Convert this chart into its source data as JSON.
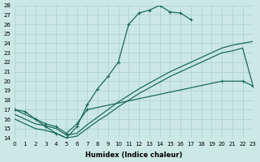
{
  "xlabel": "Humidex (Indice chaleur)",
  "bg_color": "#cce8e4",
  "grid_color": "#aacfca",
  "line_color": "#1a6b5a",
  "xlim": [
    0,
    23
  ],
  "ylim": [
    14,
    28
  ],
  "yticks": [
    14,
    15,
    16,
    17,
    18,
    19,
    20,
    21,
    22,
    23,
    24,
    25,
    26,
    27,
    28
  ],
  "xticks": [
    0,
    1,
    2,
    3,
    4,
    5,
    6,
    7,
    8,
    9,
    10,
    11,
    12,
    13,
    14,
    15,
    16,
    17,
    18,
    19,
    20,
    21,
    22,
    23
  ],
  "series": [
    {
      "x": [
        0,
        1,
        2,
        3,
        4,
        5,
        6,
        7,
        8,
        9,
        10,
        11,
        12,
        13,
        14,
        15,
        16,
        17
      ],
      "y": [
        17.0,
        16.8,
        16.0,
        15.2,
        14.5,
        14.0,
        15.2,
        17.5,
        19.2,
        20.5,
        22.0,
        26.0,
        27.2,
        27.5,
        28.0,
        27.3,
        27.2,
        26.5
      ],
      "marker": true
    },
    {
      "x": [
        0,
        2,
        3,
        4,
        5,
        6,
        7,
        20,
        22,
        23
      ],
      "y": [
        17.0,
        16.0,
        15.5,
        15.2,
        14.5,
        15.5,
        17.0,
        20.0,
        20.0,
        19.5
      ],
      "marker": true
    },
    {
      "x": [
        0,
        2,
        3,
        4,
        5,
        6,
        7,
        8,
        9,
        10,
        11,
        12,
        13,
        14,
        15,
        16,
        17,
        18,
        19,
        20,
        21,
        22,
        23
      ],
      "y": [
        16.5,
        15.5,
        15.3,
        15.0,
        14.3,
        14.5,
        15.4,
        16.2,
        17.0,
        17.8,
        18.5,
        19.2,
        19.8,
        20.4,
        21.0,
        21.5,
        22.0,
        22.5,
        23.0,
        23.5,
        23.8,
        24.0,
        24.2
      ],
      "marker": false
    },
    {
      "x": [
        0,
        2,
        3,
        4,
        5,
        6,
        7,
        8,
        9,
        10,
        11,
        12,
        13,
        14,
        15,
        16,
        17,
        18,
        19,
        20,
        21,
        22,
        23
      ],
      "y": [
        16.0,
        15.0,
        14.8,
        14.5,
        14.0,
        14.2,
        15.0,
        15.8,
        16.5,
        17.3,
        18.0,
        18.7,
        19.3,
        19.9,
        20.5,
        21.0,
        21.5,
        22.0,
        22.5,
        23.0,
        23.2,
        23.5,
        19.5
      ],
      "marker": false
    }
  ]
}
